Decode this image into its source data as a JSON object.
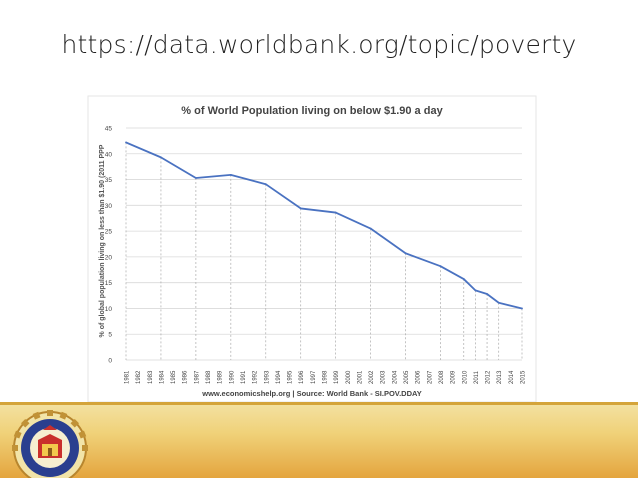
{
  "slide": {
    "title": "https://data.worldbank.org/topic/poverty"
  },
  "colors": {
    "line": "#4a72c1",
    "grid": "#d9d9d9",
    "dash": "#aaaaaa",
    "text": "#444444",
    "footer_gold": "#e9b84e",
    "seal_blue": "#2a3f8f",
    "seal_red": "#c9302c"
  },
  "logo": {
    "name": "university-seal"
  },
  "chart_data": {
    "type": "line",
    "title": "% of World Population living on below $1.90 a day",
    "ylabel": "% of global population living on less than $1.90 (2011 PPP",
    "xlabel": "",
    "source": "www.economicshelp.org | Source: World Bank - SI.POV.DDAY",
    "ylim": [
      0,
      45
    ],
    "yticks": [
      0,
      5,
      10,
      15,
      20,
      25,
      30,
      35,
      40,
      45
    ],
    "grid": true,
    "categories": [
      "1981",
      "1982",
      "1983",
      "1984",
      "1985",
      "1986",
      "1987",
      "1988",
      "1989",
      "1990",
      "1991",
      "1992",
      "1993",
      "1994",
      "1995",
      "1996",
      "1997",
      "1998",
      "1999",
      "2000",
      "2001",
      "2002",
      "2003",
      "2004",
      "2005",
      "2006",
      "2007",
      "2008",
      "2009",
      "2010",
      "2011",
      "2012",
      "2013",
      "2014",
      "2015"
    ],
    "series": [
      {
        "points": [
          {
            "x": "1981",
            "y": 42.2
          },
          {
            "x": "1984",
            "y": 39.3
          },
          {
            "x": "1987",
            "y": 35.3
          },
          {
            "x": "1990",
            "y": 35.9
          },
          {
            "x": "1993",
            "y": 34.1
          },
          {
            "x": "1996",
            "y": 29.4
          },
          {
            "x": "1999",
            "y": 28.6
          },
          {
            "x": "2002",
            "y": 25.5
          },
          {
            "x": "2005",
            "y": 20.7
          },
          {
            "x": "2008",
            "y": 18.2
          },
          {
            "x": "2010",
            "y": 15.7
          },
          {
            "x": "2011",
            "y": 13.5
          },
          {
            "x": "2012",
            "y": 12.8
          },
          {
            "x": "2013",
            "y": 11.1
          },
          {
            "x": "2015",
            "y": 10.0
          }
        ]
      }
    ]
  }
}
